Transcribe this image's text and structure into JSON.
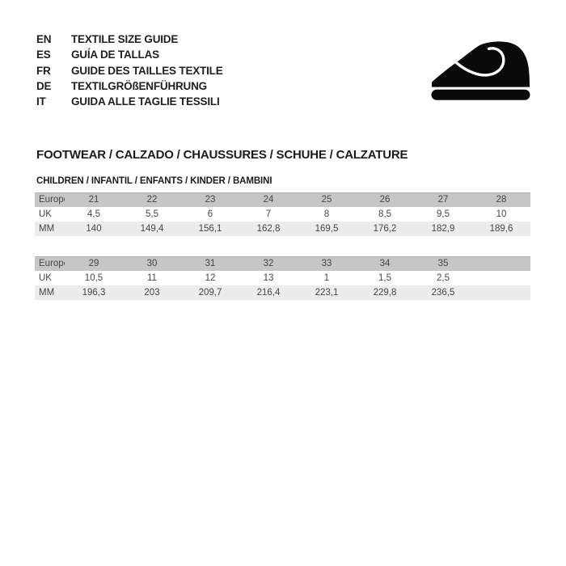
{
  "languages": [
    {
      "code": "EN",
      "label": "TEXTILE SIZE GUIDE"
    },
    {
      "code": "ES",
      "label": "GUÍA DE TALLAS"
    },
    {
      "code": "FR",
      "label": "GUIDE DES TAILLES TEXTILE"
    },
    {
      "code": "DE",
      "label": "TEXTILGRÖßENFÜHRUNG"
    },
    {
      "code": "IT",
      "label": "GUIDA ALLE TAGLIE TESSILI"
    }
  ],
  "icon": {
    "name": "children-shoe-icon",
    "color": "#0a0a0a"
  },
  "section_title": "FOOTWEAR / CALZADO / CHAUSSURES / SCHUHE / CALZATURE",
  "subsection_title": "CHILDREN / INFANTIL / ENFANTS / KINDER / BAMBINI",
  "tables": [
    {
      "rows": [
        {
          "label": "Europe",
          "values": [
            "21",
            "22",
            "23",
            "24",
            "25",
            "26",
            "27",
            "28"
          ]
        },
        {
          "label": "UK",
          "values": [
            "4,5",
            "5,5",
            "6",
            "7",
            "8",
            "8,5",
            "9,5",
            "10"
          ]
        },
        {
          "label": "MM",
          "values": [
            "140",
            "149,4",
            "156,1",
            "162,8",
            "169,5",
            "176,2",
            "182,9",
            "189,6"
          ]
        }
      ]
    },
    {
      "rows": [
        {
          "label": "Europe",
          "values": [
            "29",
            "30",
            "31",
            "32",
            "33",
            "34",
            "35",
            ""
          ]
        },
        {
          "label": "UK",
          "values": [
            "10,5",
            "11",
            "12",
            "13",
            "1",
            "1,5",
            "2,5",
            ""
          ]
        },
        {
          "label": "MM",
          "values": [
            "196,3",
            "203",
            "209,7",
            "216,4",
            "223,1",
            "229,8",
            "236,5",
            ""
          ]
        }
      ]
    }
  ],
  "colors": {
    "header_row_bg": "#c6c6c6",
    "alt_row_bg": "#ececec",
    "table_text": "#464646",
    "heading_text": "#1b1b1b"
  }
}
